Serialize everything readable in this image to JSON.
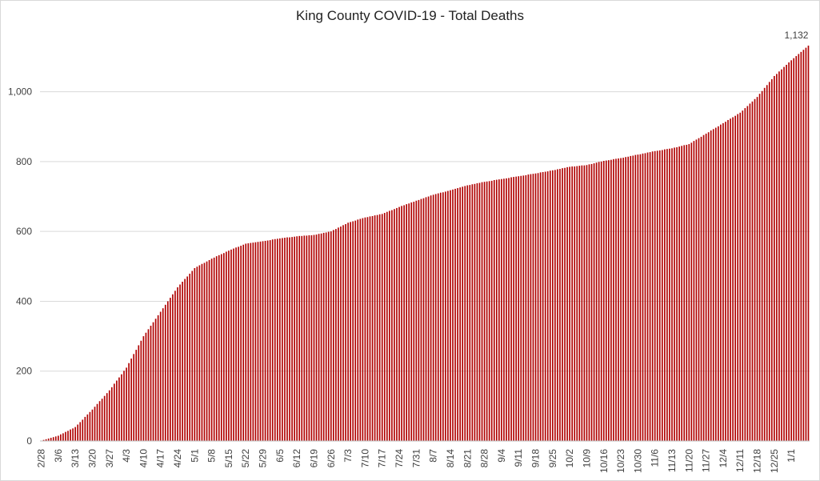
{
  "chart_data": {
    "type": "bar",
    "title": "King County COVID-19 - Total Deaths",
    "xlabel": "",
    "ylabel": "",
    "ylim": [
      0,
      1132
    ],
    "yticks": [
      "0",
      "200",
      "400",
      "600",
      "800",
      "1,000"
    ],
    "ytick_values": [
      0,
      200,
      400,
      600,
      800,
      1000
    ],
    "grid": "horizontal",
    "legend": "none",
    "bar_color": "#b00000",
    "start_date": "2/28",
    "x_tick_labels": [
      "2/28",
      "3/6",
      "3/13",
      "3/20",
      "3/27",
      "4/3",
      "4/10",
      "4/17",
      "4/24",
      "5/1",
      "5/8",
      "5/15",
      "5/22",
      "5/29",
      "6/5",
      "6/12",
      "6/19",
      "6/26",
      "7/3",
      "7/10",
      "7/17",
      "7/24",
      "7/31",
      "8/7",
      "8/14",
      "8/21",
      "8/28",
      "9/4",
      "9/11",
      "9/18",
      "9/25",
      "10/2",
      "10/9",
      "10/16",
      "10/23",
      "10/30",
      "11/6",
      "11/13",
      "11/20",
      "11/27",
      "12/4",
      "12/11",
      "12/18",
      "12/25",
      "1/1"
    ],
    "data_labels": [
      {
        "index": 315,
        "text": "1,132"
      }
    ],
    "series_points": [
      [
        0,
        1
      ],
      [
        7,
        15
      ],
      [
        14,
        40
      ],
      [
        21,
        90
      ],
      [
        28,
        145
      ],
      [
        35,
        210
      ],
      [
        42,
        300
      ],
      [
        49,
        370
      ],
      [
        56,
        440
      ],
      [
        63,
        495
      ],
      [
        70,
        522
      ],
      [
        77,
        545
      ],
      [
        84,
        565
      ],
      [
        91,
        572
      ],
      [
        98,
        580
      ],
      [
        105,
        586
      ],
      [
        112,
        590
      ],
      [
        119,
        600
      ],
      [
        126,
        625
      ],
      [
        133,
        640
      ],
      [
        140,
        650
      ],
      [
        147,
        670
      ],
      [
        154,
        688
      ],
      [
        161,
        705
      ],
      [
        168,
        718
      ],
      [
        175,
        732
      ],
      [
        182,
        742
      ],
      [
        189,
        750
      ],
      [
        196,
        758
      ],
      [
        203,
        766
      ],
      [
        210,
        775
      ],
      [
        217,
        785
      ],
      [
        224,
        790
      ],
      [
        231,
        802
      ],
      [
        238,
        810
      ],
      [
        245,
        820
      ],
      [
        252,
        830
      ],
      [
        259,
        838
      ],
      [
        266,
        850
      ],
      [
        273,
        880
      ],
      [
        280,
        910
      ],
      [
        287,
        940
      ],
      [
        294,
        985
      ],
      [
        301,
        1045
      ],
      [
        308,
        1090
      ],
      [
        315,
        1132
      ]
    ]
  }
}
